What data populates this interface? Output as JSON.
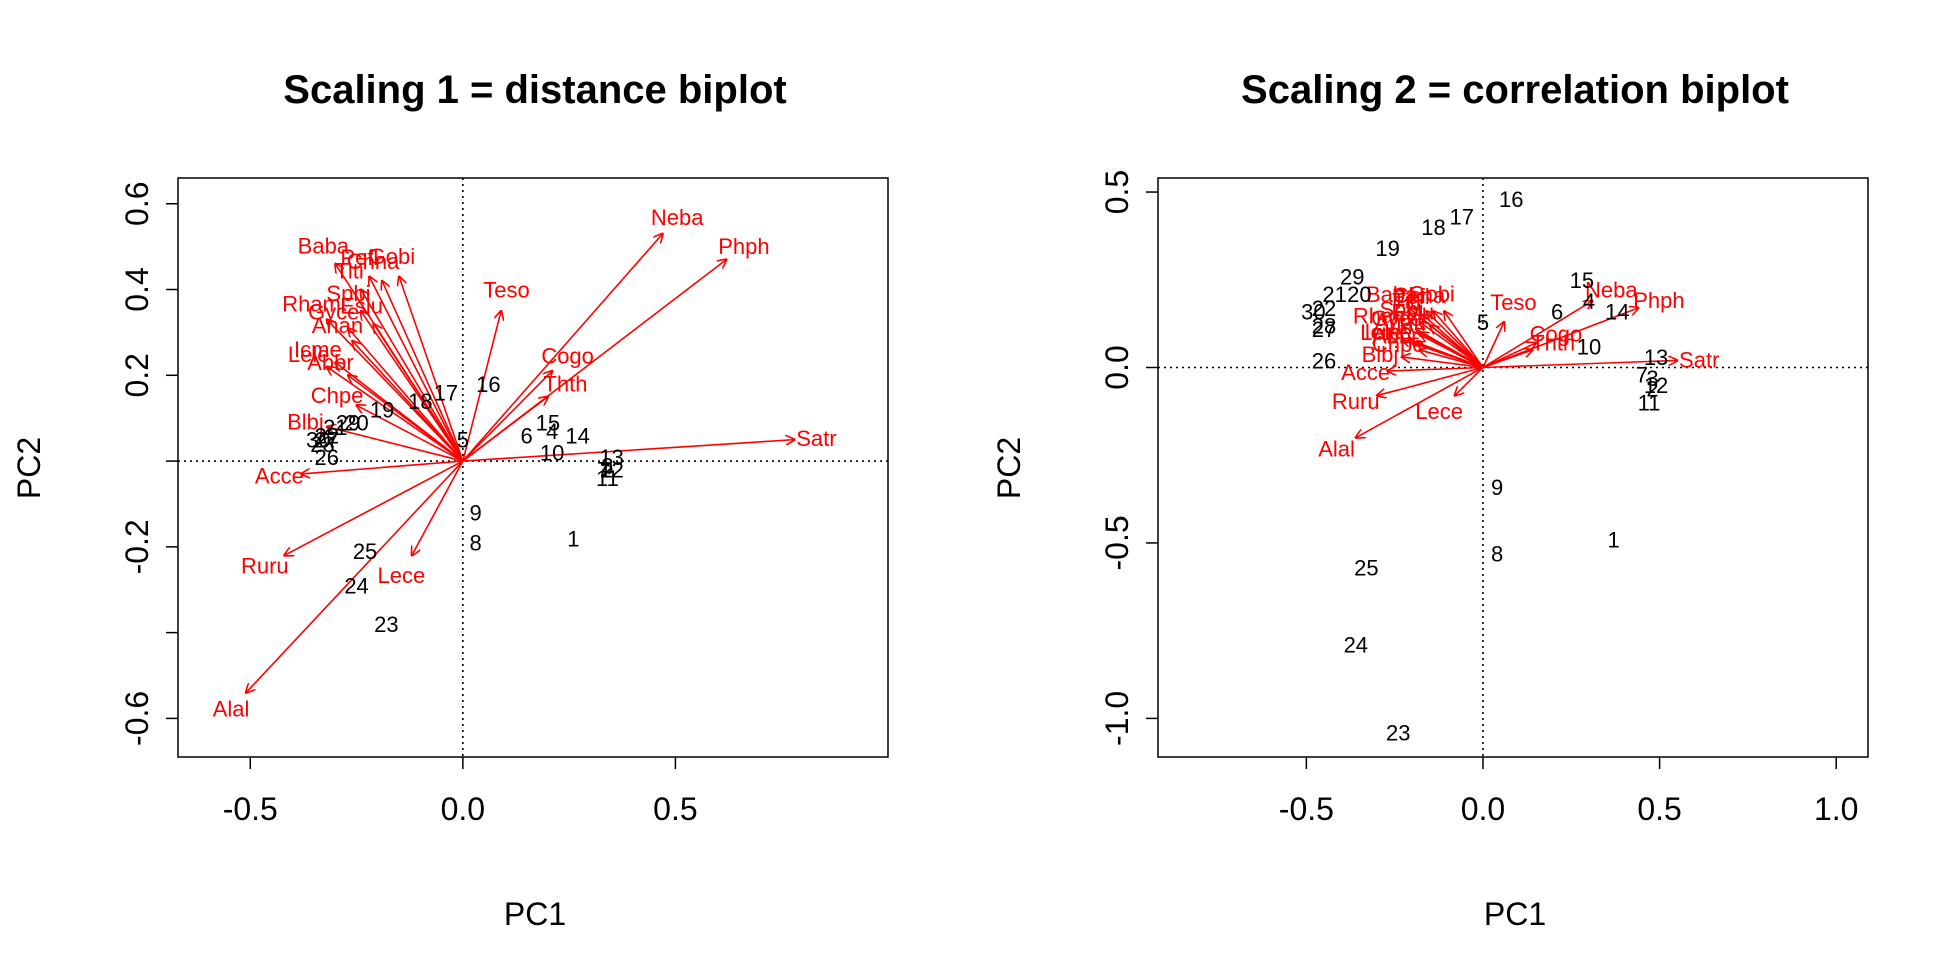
{
  "colors": {
    "species": "#ff0000",
    "sites": "#000000",
    "axis": "#000000"
  },
  "chart_data": [
    {
      "type": "scatter",
      "title": "Scaling 1 = distance biplot",
      "xlabel": "PC1",
      "ylabel": "PC2",
      "xlim": [
        -0.67,
        1.0
      ],
      "ylim": [
        -0.69,
        0.66
      ],
      "xticks": [
        -0.5,
        0.0,
        0.5
      ],
      "xtick_labels": [
        "-0.5",
        "0.0",
        "0.5"
      ],
      "yticks": [
        -0.6,
        -0.4,
        -0.2,
        0.0,
        0.2,
        0.4,
        0.6
      ],
      "ytick_labels": [
        "-0.6",
        "",
        "-0.2",
        "",
        "0.2",
        "0.4",
        "0.6"
      ],
      "reference_lines": {
        "x": 0,
        "y": 0
      },
      "species": [
        {
          "label": "Neba",
          "x": 0.47,
          "y": 0.53
        },
        {
          "label": "Phph",
          "x": 0.62,
          "y": 0.47
        },
        {
          "label": "Satr",
          "x": 0.78,
          "y": 0.05
        },
        {
          "label": "Teso",
          "x": 0.09,
          "y": 0.35
        },
        {
          "label": "Cogo",
          "x": 0.21,
          "y": 0.21
        },
        {
          "label": "Thth",
          "x": 0.2,
          "y": 0.15
        },
        {
          "label": "Baba",
          "x": -0.3,
          "y": 0.46
        },
        {
          "label": "Pefl",
          "x": -0.22,
          "y": 0.43
        },
        {
          "label": "Chna",
          "x": -0.19,
          "y": 0.42
        },
        {
          "label": "Gobi",
          "x": -0.15,
          "y": 0.43
        },
        {
          "label": "Titi",
          "x": -0.24,
          "y": 0.4
        },
        {
          "label": "Ruru",
          "x": -0.42,
          "y": -0.22
        },
        {
          "label": "Spbi",
          "x": -0.24,
          "y": 0.35
        },
        {
          "label": "Eslu",
          "x": -0.21,
          "y": 0.32
        },
        {
          "label": "Rham",
          "x": -0.32,
          "y": 0.33
        },
        {
          "label": "Gyce",
          "x": -0.27,
          "y": 0.31
        },
        {
          "label": "Anan",
          "x": -0.26,
          "y": 0.28
        },
        {
          "label": "Lele",
          "x": -0.32,
          "y": 0.22
        },
        {
          "label": "Abbr",
          "x": -0.27,
          "y": 0.2
        },
        {
          "label": "Icme",
          "x": -0.3,
          "y": 0.23
        },
        {
          "label": "Chpe",
          "x": -0.25,
          "y": 0.13
        },
        {
          "label": "Blbj",
          "x": -0.32,
          "y": 0.08
        },
        {
          "label": "Acce",
          "x": -0.38,
          "y": -0.03
        },
        {
          "label": "Lece",
          "x": -0.12,
          "y": -0.22
        },
        {
          "label": "Alal",
          "x": -0.51,
          "y": -0.54
        }
      ],
      "sites": [
        {
          "label": "1",
          "x": 0.26,
          "y": -0.18
        },
        {
          "label": "2",
          "x": 0.34,
          "y": -0.02
        },
        {
          "label": "3",
          "x": 0.34,
          "y": -0.01
        },
        {
          "label": "4",
          "x": 0.21,
          "y": 0.07
        },
        {
          "label": "5",
          "x": 0.0,
          "y": 0.05
        },
        {
          "label": "6",
          "x": 0.15,
          "y": 0.06
        },
        {
          "label": "7",
          "x": 0.33,
          "y": -0.02
        },
        {
          "label": "8",
          "x": 0.03,
          "y": -0.19
        },
        {
          "label": "9",
          "x": 0.03,
          "y": -0.12
        },
        {
          "label": "10",
          "x": 0.21,
          "y": 0.02
        },
        {
          "label": "11",
          "x": 0.34,
          "y": -0.04
        },
        {
          "label": "12",
          "x": 0.35,
          "y": -0.02
        },
        {
          "label": "13",
          "x": 0.35,
          "y": 0.01
        },
        {
          "label": "14",
          "x": 0.27,
          "y": 0.06
        },
        {
          "label": "15",
          "x": 0.2,
          "y": 0.09
        },
        {
          "label": "16",
          "x": 0.06,
          "y": 0.18
        },
        {
          "label": "17",
          "x": -0.04,
          "y": 0.16
        },
        {
          "label": "18",
          "x": -0.1,
          "y": 0.14
        },
        {
          "label": "19",
          "x": -0.19,
          "y": 0.12
        },
        {
          "label": "20",
          "x": -0.25,
          "y": 0.09
        },
        {
          "label": "21",
          "x": -0.3,
          "y": 0.08
        },
        {
          "label": "22",
          "x": -0.32,
          "y": 0.06
        },
        {
          "label": "23",
          "x": -0.18,
          "y": -0.38
        },
        {
          "label": "24",
          "x": -0.25,
          "y": -0.29
        },
        {
          "label": "25",
          "x": -0.23,
          "y": -0.21
        },
        {
          "label": "26",
          "x": -0.32,
          "y": 0.01
        },
        {
          "label": "27",
          "x": -0.32,
          "y": 0.05
        },
        {
          "label": "28",
          "x": -0.33,
          "y": 0.04
        },
        {
          "label": "29",
          "x": -0.27,
          "y": 0.09
        },
        {
          "label": "30",
          "x": -0.34,
          "y": 0.05
        }
      ]
    },
    {
      "type": "scatter",
      "title": "Scaling 2 = correlation biplot",
      "xlabel": "PC1",
      "ylabel": "PC2",
      "xlim": [
        -0.92,
        1.09
      ],
      "ylim": [
        -1.11,
        0.54
      ],
      "xticks": [
        -0.5,
        0.0,
        0.5,
        1.0
      ],
      "xtick_labels": [
        "-0.5",
        "0.0",
        "0.5",
        "1.0"
      ],
      "yticks": [
        -1.0,
        -0.5,
        0.0,
        0.5
      ],
      "ytick_labels": [
        "-1.0",
        "-0.5",
        "0.0",
        "0.5"
      ],
      "reference_lines": {
        "x": 0,
        "y": 0
      },
      "species": [
        {
          "label": "Neba",
          "x": 0.31,
          "y": 0.19
        },
        {
          "label": "Phph",
          "x": 0.44,
          "y": 0.17
        },
        {
          "label": "Satr",
          "x": 0.55,
          "y": 0.02
        },
        {
          "label": "Teso",
          "x": 0.06,
          "y": 0.13
        },
        {
          "label": "Cogo",
          "x": 0.15,
          "y": 0.07
        },
        {
          "label": "Thth",
          "x": 0.14,
          "y": 0.05
        },
        {
          "label": "Baba",
          "x": -0.21,
          "y": 0.17
        },
        {
          "label": "Pefl",
          "x": -0.16,
          "y": 0.16
        },
        {
          "label": "Chna",
          "x": -0.14,
          "y": 0.16
        },
        {
          "label": "Gobi",
          "x": -0.11,
          "y": 0.16
        },
        {
          "label": "Titi",
          "x": -0.17,
          "y": 0.15
        },
        {
          "label": "Spbi",
          "x": -0.18,
          "y": 0.13
        },
        {
          "label": "Eslu",
          "x": -0.15,
          "y": 0.12
        },
        {
          "label": "Rham",
          "x": -0.23,
          "y": 0.12
        },
        {
          "label": "Gyce",
          "x": -0.19,
          "y": 0.11
        },
        {
          "label": "Anan",
          "x": -0.18,
          "y": 0.1
        },
        {
          "label": "Lele",
          "x": -0.23,
          "y": 0.08
        },
        {
          "label": "Abbr",
          "x": -0.19,
          "y": 0.07
        },
        {
          "label": "Icme",
          "x": -0.21,
          "y": 0.08
        },
        {
          "label": "Chpe",
          "x": -0.18,
          "y": 0.05
        },
        {
          "label": "Blbj",
          "x": -0.23,
          "y": 0.03
        },
        {
          "label": "Acce",
          "x": -0.27,
          "y": -0.01
        },
        {
          "label": "Ruru",
          "x": -0.3,
          "y": -0.08
        },
        {
          "label": "Lece",
          "x": -0.08,
          "y": -0.08
        },
        {
          "label": "Alal",
          "x": -0.36,
          "y": -0.2
        }
      ],
      "sites": [
        {
          "label": "1",
          "x": 0.37,
          "y": -0.49
        },
        {
          "label": "2",
          "x": 0.48,
          "y": -0.06
        },
        {
          "label": "3",
          "x": 0.48,
          "y": -0.03
        },
        {
          "label": "4",
          "x": 0.3,
          "y": 0.19
        },
        {
          "label": "5",
          "x": 0.0,
          "y": 0.13
        },
        {
          "label": "6",
          "x": 0.21,
          "y": 0.16
        },
        {
          "label": "7",
          "x": 0.45,
          "y": -0.02
        },
        {
          "label": "8",
          "x": 0.04,
          "y": -0.53
        },
        {
          "label": "9",
          "x": 0.04,
          "y": -0.34
        },
        {
          "label": "10",
          "x": 0.3,
          "y": 0.06
        },
        {
          "label": "11",
          "x": 0.47,
          "y": -0.1
        },
        {
          "label": "12",
          "x": 0.49,
          "y": -0.05
        },
        {
          "label": "13",
          "x": 0.49,
          "y": 0.03
        },
        {
          "label": "14",
          "x": 0.38,
          "y": 0.16
        },
        {
          "label": "15",
          "x": 0.28,
          "y": 0.25
        },
        {
          "label": "16",
          "x": 0.08,
          "y": 0.48
        },
        {
          "label": "17",
          "x": -0.06,
          "y": 0.43
        },
        {
          "label": "18",
          "x": -0.14,
          "y": 0.4
        },
        {
          "label": "19",
          "x": -0.27,
          "y": 0.34
        },
        {
          "label": "20",
          "x": -0.35,
          "y": 0.21
        },
        {
          "label": "21",
          "x": -0.42,
          "y": 0.21
        },
        {
          "label": "22",
          "x": -0.45,
          "y": 0.17
        },
        {
          "label": "23",
          "x": -0.24,
          "y": -1.04
        },
        {
          "label": "24",
          "x": -0.36,
          "y": -0.79
        },
        {
          "label": "25",
          "x": -0.33,
          "y": -0.57
        },
        {
          "label": "26",
          "x": -0.45,
          "y": 0.02
        },
        {
          "label": "27",
          "x": -0.45,
          "y": 0.11
        },
        {
          "label": "28",
          "x": -0.45,
          "y": 0.12
        },
        {
          "label": "29",
          "x": -0.37,
          "y": 0.26
        },
        {
          "label": "30",
          "x": -0.48,
          "y": 0.16
        }
      ]
    }
  ]
}
